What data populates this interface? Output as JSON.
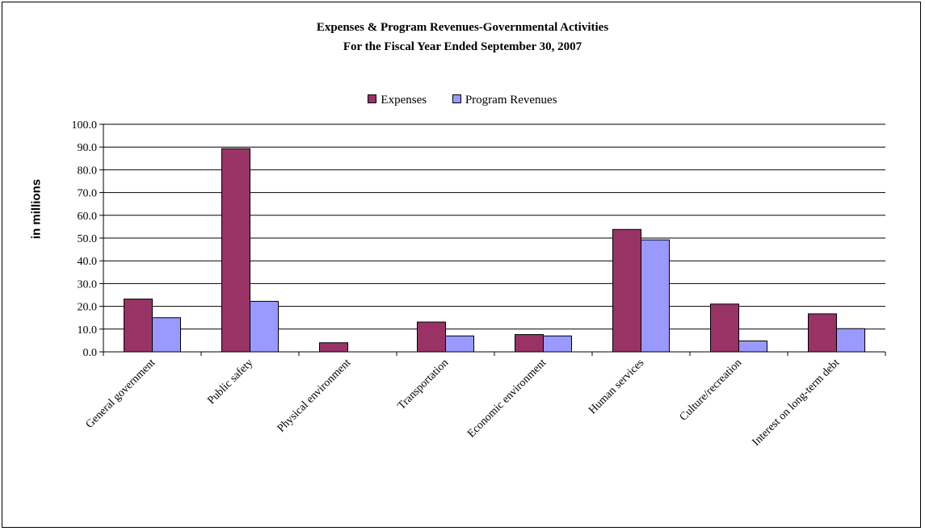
{
  "chart_data": {
    "type": "bar",
    "title": "Expenses & Program Revenues-Governmental Activities",
    "subtitle": "For the Fiscal Year Ended September 30, 2007",
    "ylabel": "in millions",
    "xlabel": "",
    "ylim": [
      0,
      100
    ],
    "yticks": [
      "0.0",
      "10.0",
      "20.0",
      "30.0",
      "40.0",
      "50.0",
      "60.0",
      "70.0",
      "80.0",
      "90.0",
      "100.0"
    ],
    "grid": true,
    "legend_position": "top",
    "categories": [
      "General government",
      "Public safety",
      "Physical environment",
      "Transportation",
      "Economic environment",
      "Human services",
      "Culture/recreation",
      "Interest on long-term debt"
    ],
    "series": [
      {
        "name": "Expenses",
        "color": "#993366",
        "values": [
          23.2,
          89.3,
          4.0,
          13.1,
          7.6,
          53.8,
          21.0,
          16.7
        ]
      },
      {
        "name": "Program Revenues",
        "color": "#9999ff",
        "values": [
          15.0,
          22.2,
          0.0,
          7.0,
          7.0,
          49.2,
          4.8,
          10.2
        ]
      }
    ]
  }
}
